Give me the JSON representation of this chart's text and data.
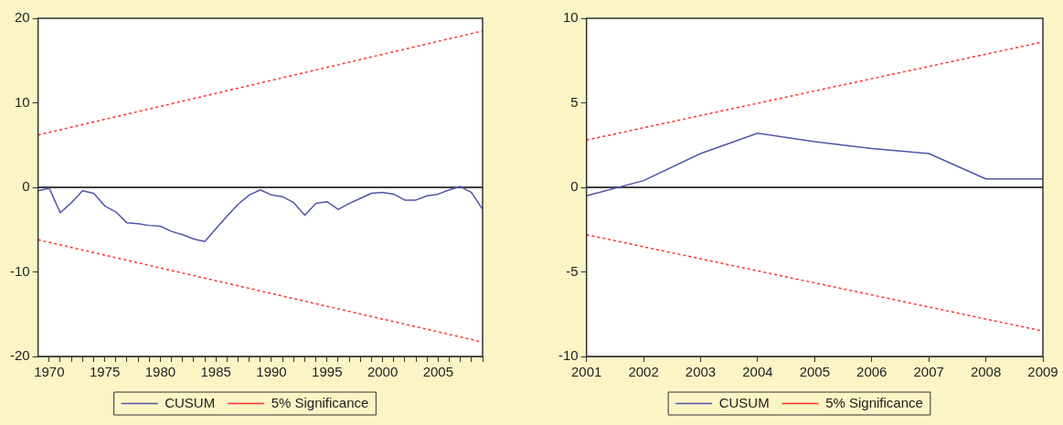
{
  "chart_data": [
    {
      "type": "line",
      "x": [
        1969,
        1970,
        1971,
        1972,
        1973,
        1974,
        1975,
        1976,
        1977,
        1978,
        1979,
        1980,
        1981,
        1982,
        1983,
        1984,
        1985,
        1986,
        1987,
        1988,
        1989,
        1990,
        1991,
        1992,
        1993,
        1994,
        1995,
        1996,
        1997,
        1998,
        1999,
        2000,
        2001,
        2002,
        2003,
        2004,
        2005,
        2006,
        2007,
        2008,
        2009
      ],
      "xlim": [
        1969,
        2009
      ],
      "xticks": [
        1970,
        {
          "value": 1971,
          "label": null
        },
        {
          "value": 1972,
          "label": null
        },
        {
          "value": 1973,
          "label": null
        },
        {
          "value": 1974,
          "label": null
        },
        1975,
        {
          "value": 1976,
          "label": null
        },
        {
          "value": 1977,
          "label": null
        },
        {
          "value": 1978,
          "label": null
        },
        {
          "value": 1979,
          "label": null
        },
        1980,
        {
          "value": 1981,
          "label": null
        },
        {
          "value": 1982,
          "label": null
        },
        {
          "value": 1983,
          "label": null
        },
        {
          "value": 1984,
          "label": null
        },
        1985,
        {
          "value": 1986,
          "label": null
        },
        {
          "value": 1987,
          "label": null
        },
        {
          "value": 1988,
          "label": null
        },
        {
          "value": 1989,
          "label": null
        },
        1990,
        {
          "value": 1991,
          "label": null
        },
        {
          "value": 1992,
          "label": null
        },
        {
          "value": 1993,
          "label": null
        },
        {
          "value": 1994,
          "label": null
        },
        1995,
        {
          "value": 1996,
          "label": null
        },
        {
          "value": 1997,
          "label": null
        },
        {
          "value": 1998,
          "label": null
        },
        {
          "value": 1999,
          "label": null
        },
        2000,
        {
          "value": 2001,
          "label": null
        },
        {
          "value": 2002,
          "label": null
        },
        {
          "value": 2003,
          "label": null
        },
        {
          "value": 2004,
          "label": null
        },
        2005,
        {
          "value": 2006,
          "label": null
        },
        {
          "value": 2007,
          "label": null
        },
        {
          "value": 2008,
          "label": null
        },
        {
          "value": 2009,
          "label": null
        }
      ],
      "ylim": [
        -20,
        20
      ],
      "yticks": [
        -20,
        -10,
        0,
        10,
        20
      ],
      "series": [
        {
          "name": "CUSUM",
          "color": "#5055a8",
          "line_style": "solid",
          "values": [
            -0.4,
            -0.1,
            -3.0,
            -1.8,
            -0.4,
            -0.7,
            -2.2,
            -2.9,
            -4.2,
            -4.3,
            -4.5,
            -4.6,
            -5.2,
            -5.6,
            -6.1,
            -6.4,
            -4.9,
            -3.4,
            -2.0,
            -0.9,
            -0.3,
            -0.9,
            -1.1,
            -1.8,
            -3.3,
            -1.9,
            -1.7,
            -2.6,
            -1.9,
            -1.3,
            -0.7,
            -0.6,
            -0.8,
            -1.5,
            -1.5,
            -1.0,
            -0.8,
            -0.3,
            0.1,
            -0.6,
            -2.6
          ]
        },
        {
          "name": "5% Significance",
          "color": "#ff3030",
          "line_style": "dotted",
          "x": [
            1969,
            2009
          ],
          "values": [
            6.2,
            18.5
          ]
        },
        {
          "color": "#ff3030",
          "line_style": "dotted",
          "x": [
            1969,
            2009
          ],
          "values": [
            -6.2,
            -18.3
          ]
        }
      ],
      "ref_lines": [
        {
          "axis": "y",
          "value": 0,
          "color": "#000000"
        }
      ],
      "grid": false,
      "legend": "bottom",
      "marker": "none"
    },
    {
      "type": "line",
      "x": [
        2001,
        2002,
        2003,
        2004,
        2005,
        2006,
        2007,
        2008,
        2009
      ],
      "xlim": [
        2001,
        2009
      ],
      "xticks": [
        2001,
        2002,
        2003,
        2004,
        2005,
        2006,
        2007,
        2008,
        2009
      ],
      "ylim": [
        -10,
        10
      ],
      "yticks": [
        -10,
        -5,
        0,
        5,
        10
      ],
      "series": [
        {
          "name": "CUSUM",
          "color": "#5055a8",
          "line_style": "solid",
          "values": [
            -0.5,
            0.4,
            2.0,
            3.2,
            2.7,
            2.3,
            2.0,
            0.5,
            0.5
          ]
        },
        {
          "name": "5% Significance",
          "color": "#ff3030",
          "line_style": "dotted",
          "x": [
            2001,
            2009
          ],
          "values": [
            2.8,
            8.6
          ]
        },
        {
          "color": "#ff3030",
          "line_style": "dotted",
          "x": [
            2001,
            2009
          ],
          "values": [
            -2.8,
            -8.5
          ]
        }
      ],
      "ref_lines": [
        {
          "axis": "y",
          "value": 0,
          "color": "#000000"
        }
      ],
      "grid": false,
      "legend": "bottom",
      "marker": "none"
    }
  ]
}
